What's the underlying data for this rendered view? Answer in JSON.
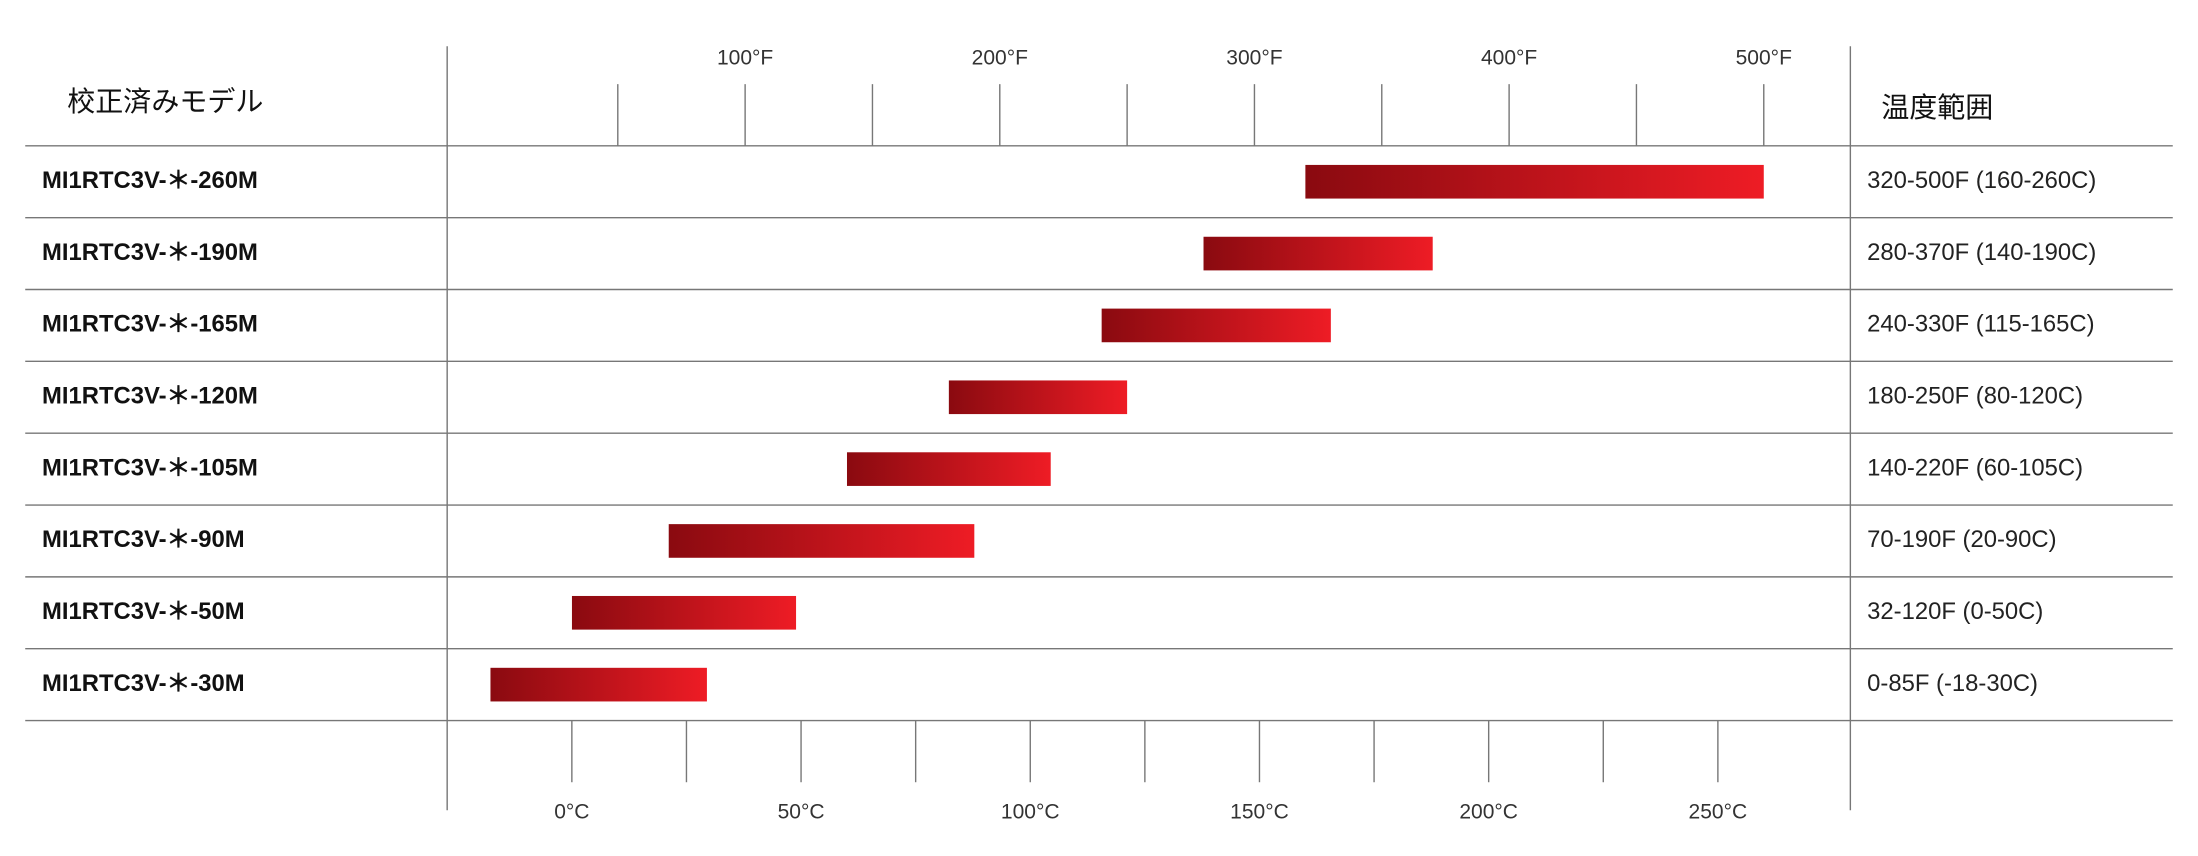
{
  "chart_data": {
    "type": "range-bar",
    "row_header": "校正済みモデル",
    "label_header": "温度範囲",
    "categories": [
      "MI1RTC3V-＊-260M",
      "MI1RTC3V-＊-190M",
      "MI1RTC3V-＊-165M",
      "MI1RTC3V-＊-120M",
      "MI1RTC3V-＊-105M",
      "MI1RTC3V-＊-90M",
      "MI1RTC3V-＊-50M",
      "MI1RTC3V-＊-30M"
    ],
    "low": [
      320,
      280,
      240,
      180,
      140,
      70,
      32,
      0
    ],
    "high": [
      500,
      370,
      330,
      250,
      220,
      190,
      120,
      85
    ],
    "value_labels": [
      "320-500F (160-260C)",
      "280-370F (140-190C)",
      "240-330F (115-165C)",
      "180-250F (80-120C)",
      "140-220F (60-105C)",
      "70-190F (20-90C)",
      "32-120F (0-50C)",
      "0-85F (-18-30C)"
    ],
    "color_start": "#8a0a10",
    "color_end": "#ee1c25",
    "xlim": [
      -17,
      534
    ],
    "xticks": [
      {
        "value": 100,
        "label": "100°F"
      },
      {
        "value": 200,
        "label": "200°F"
      },
      {
        "value": 300,
        "label": "300°F"
      },
      {
        "value": 400,
        "label": "400°F"
      },
      {
        "value": 500,
        "label": "500°F"
      }
    ],
    "xticks_minor": [
      50,
      150,
      250,
      350,
      450
    ],
    "x2lim": [
      -27.2,
      278.9
    ],
    "x2ticks": [
      {
        "value": 0,
        "label": "0°C"
      },
      {
        "value": 50,
        "label": "50°C"
      },
      {
        "value": 100,
        "label": "100°C"
      },
      {
        "value": 150,
        "label": "150°C"
      },
      {
        "value": 200,
        "label": "200°C"
      },
      {
        "value": 250,
        "label": "250°C"
      }
    ],
    "x2ticks_minor": [
      25,
      75,
      125,
      175,
      225
    ]
  }
}
